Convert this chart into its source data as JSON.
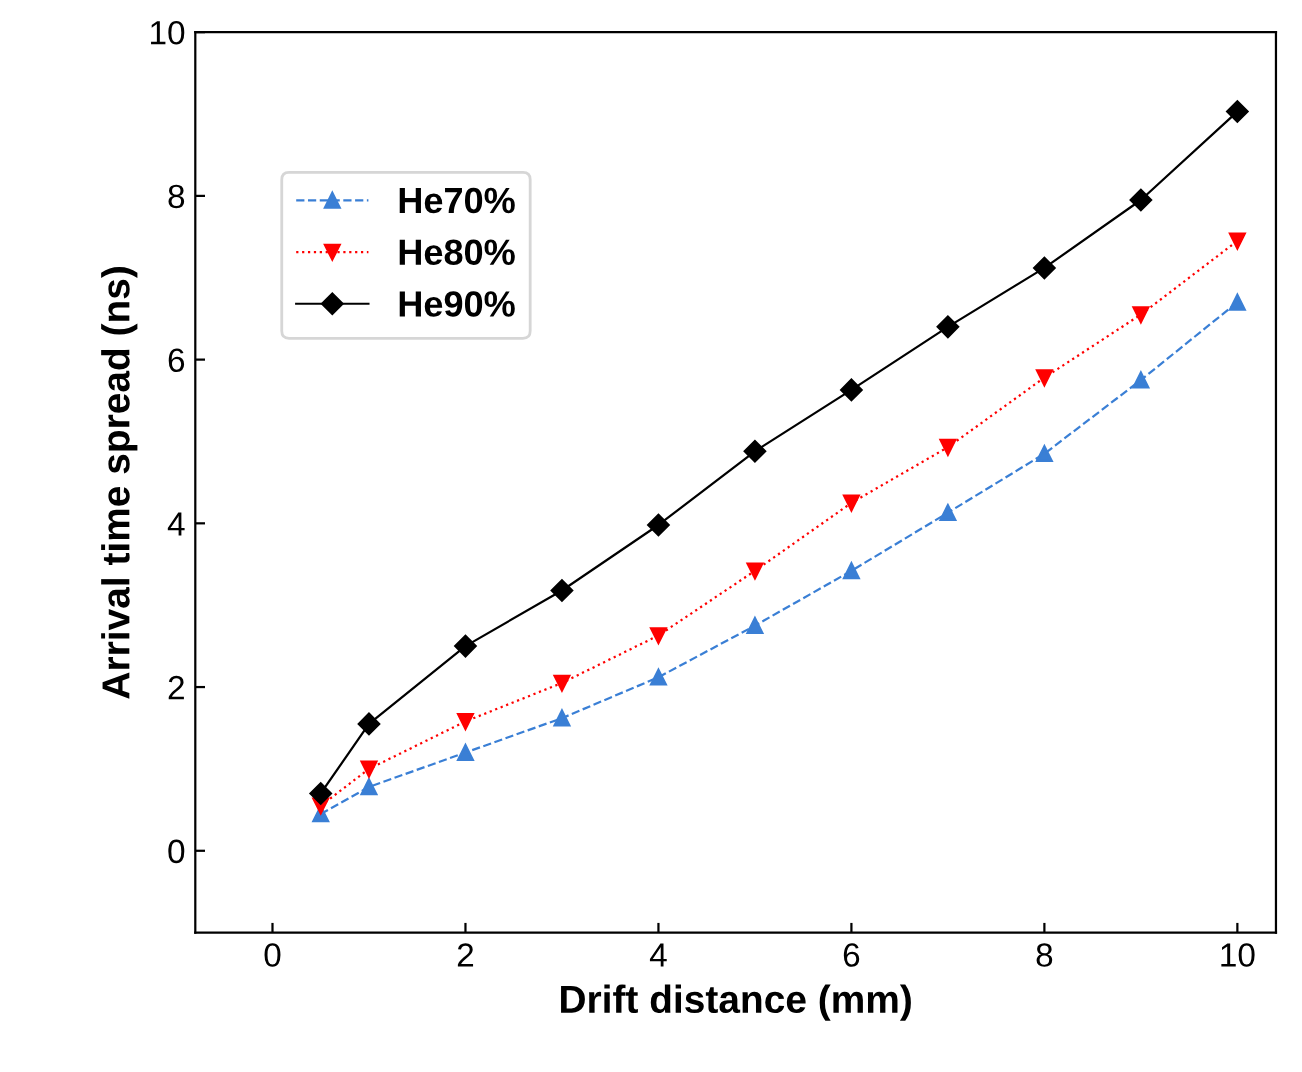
{
  "chart_data": {
    "type": "line",
    "xlabel": "Drift distance (mm)",
    "ylabel": "Arrival time spread (ns)",
    "xlim": [
      -0.8,
      10.4
    ],
    "ylim": [
      -1,
      10
    ],
    "xticks": [
      0,
      2,
      4,
      6,
      8,
      10
    ],
    "yticks": [
      0,
      2,
      4,
      6,
      8,
      10
    ],
    "grid": false,
    "legend": "top left",
    "x": [
      0.5,
      1,
      2,
      3,
      4,
      5,
      6,
      7,
      8,
      9,
      10
    ],
    "series": [
      {
        "name": "He70%",
        "color": "#3a7fd5",
        "marker": "triangle",
        "line_style": "dashed",
        "values": [
          0.45,
          0.78,
          1.2,
          1.62,
          2.12,
          2.75,
          3.42,
          4.13,
          4.85,
          5.75,
          6.7
        ]
      },
      {
        "name": "He80%",
        "color": "#ff0000",
        "marker": "triangle_down",
        "line_style": "dotted",
        "values": [
          0.55,
          1.0,
          1.58,
          2.05,
          2.63,
          3.42,
          4.25,
          4.93,
          5.78,
          6.55,
          7.45
        ]
      },
      {
        "name": "He90%",
        "color": "#000000",
        "marker": "diamond",
        "line_style": "solid",
        "values": [
          0.7,
          1.55,
          2.5,
          3.18,
          3.98,
          4.88,
          5.63,
          6.4,
          7.12,
          7.95,
          9.03
        ]
      }
    ]
  }
}
